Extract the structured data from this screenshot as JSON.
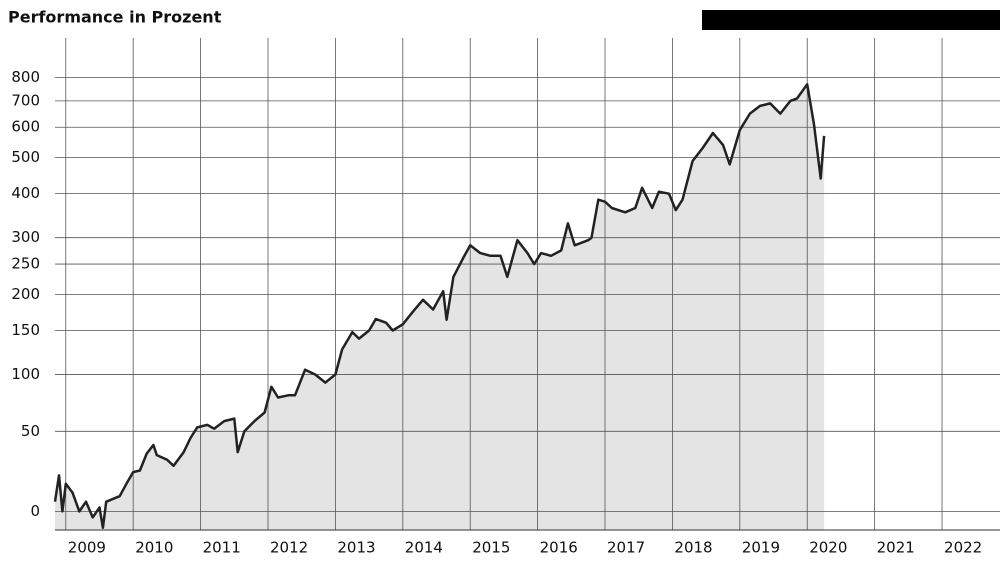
{
  "chart_data": {
    "type": "line",
    "title": "Performance in Prozent",
    "x": [
      2008.84,
      2008.9,
      2008.95,
      2009.0,
      2009.1,
      2009.2,
      2009.3,
      2009.4,
      2009.5,
      2009.55,
      2009.6,
      2009.8,
      2009.9,
      2010.0,
      2010.1,
      2010.2,
      2010.3,
      2010.35,
      2010.5,
      2010.6,
      2010.75,
      2010.85,
      2010.95,
      2011.1,
      2011.2,
      2011.35,
      2011.5,
      2011.55,
      2011.65,
      2011.8,
      2011.95,
      2012.05,
      2012.15,
      2012.3,
      2012.4,
      2012.55,
      2012.7,
      2012.85,
      2013.0,
      2013.1,
      2013.25,
      2013.35,
      2013.5,
      2013.6,
      2013.75,
      2013.85,
      2014.0,
      2014.15,
      2014.3,
      2014.45,
      2014.6,
      2014.65,
      2014.75,
      2014.9,
      2015.0,
      2015.15,
      2015.3,
      2015.45,
      2015.55,
      2015.7,
      2015.85,
      2015.95,
      2016.05,
      2016.2,
      2016.35,
      2016.45,
      2016.55,
      2016.75,
      2016.8,
      2016.9,
      2017.0,
      2017.1,
      2017.3,
      2017.45,
      2017.55,
      2017.7,
      2017.8,
      2017.95,
      2018.05,
      2018.15,
      2018.3,
      2018.45,
      2018.6,
      2018.75,
      2018.85,
      2019.0,
      2019.15,
      2019.3,
      2019.45,
      2019.6,
      2019.75,
      2019.85,
      2020.0,
      2020.1,
      2020.2,
      2020.25
    ],
    "values": [
      5,
      20,
      0,
      15,
      10,
      0,
      5,
      -3,
      2,
      -8,
      5,
      8,
      15,
      22,
      23,
      34,
      40,
      33,
      30,
      26,
      35,
      45,
      53,
      55,
      52,
      58,
      60,
      35,
      50,
      58,
      65,
      88,
      78,
      80,
      80,
      105,
      100,
      92,
      100,
      127,
      148,
      140,
      150,
      165,
      160,
      150,
      158,
      175,
      192,
      178,
      205,
      164,
      228,
      262,
      285,
      270,
      265,
      265,
      228,
      295,
      270,
      250,
      270,
      265,
      275,
      330,
      285,
      295,
      300,
      385,
      380,
      365,
      355,
      365,
      415,
      365,
      405,
      400,
      360,
      385,
      490,
      530,
      580,
      540,
      480,
      590,
      650,
      680,
      690,
      650,
      700,
      710,
      770,
      610,
      440,
      570
    ],
    "color": "#222222",
    "area_color": "#e4e4e4",
    "xlim": [
      2008.84,
      2022.86
    ],
    "xticks": [
      2009,
      2010,
      2011,
      2012,
      2013,
      2014,
      2015,
      2016,
      2017,
      2018,
      2019,
      2020,
      2021,
      2022
    ],
    "ylim": [
      -9,
      1000
    ],
    "yticks": [
      0,
      50,
      100,
      150,
      200,
      250,
      300,
      400,
      500,
      600,
      700,
      800
    ],
    "yscale": "log",
    "log_offset": 100,
    "grid": true
  }
}
